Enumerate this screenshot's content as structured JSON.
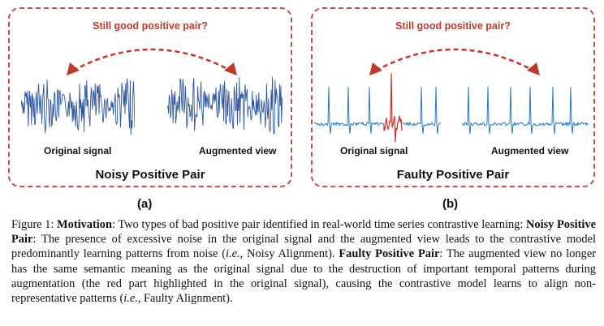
{
  "panel_a": {
    "question": "Still good positive pair?",
    "left_label": "Original signal",
    "right_label": "Augmented view",
    "title": "Noisy Positive Pair",
    "sublabel": "(a)"
  },
  "panel_b": {
    "question": "Still good positive pair?",
    "left_label": "Original signal",
    "right_label": "Augmented view",
    "title": "Faulty Positive Pair",
    "sublabel": "(b)"
  },
  "colors": {
    "signal_blue": "#2f56a0",
    "ecg_blue": "#2878b8",
    "accent_red": "#c0392b",
    "border_red": "#c0504d"
  },
  "caption": {
    "figure_label": "Figure 1:",
    "motivation_term": "Motivation",
    "motivation_text": ": Two types of bad positive pair identified in real-world time series contrastive learning:",
    "noisy_term": "Noisy Positive Pair",
    "noisy_text_1": ": The presence of excessive noise in the original signal and the augmented view leads to the contrastive model predominantly learning patterns from noise (",
    "noisy_ie": "i.e.",
    "noisy_text_2": ", Noisy Alignment).",
    "faulty_term": "Faulty Positive Pair",
    "faulty_text_1": ": The augmented view no longer has the same semantic meaning as the original signal due to the destruction of important temporal patterns during augmentation (the red part highlighted in the original signal), causing the contrastive model learns to align non-representative patterns (",
    "faulty_ie": "i.e.",
    "faulty_text_2": ", Faulty Alignment)."
  }
}
